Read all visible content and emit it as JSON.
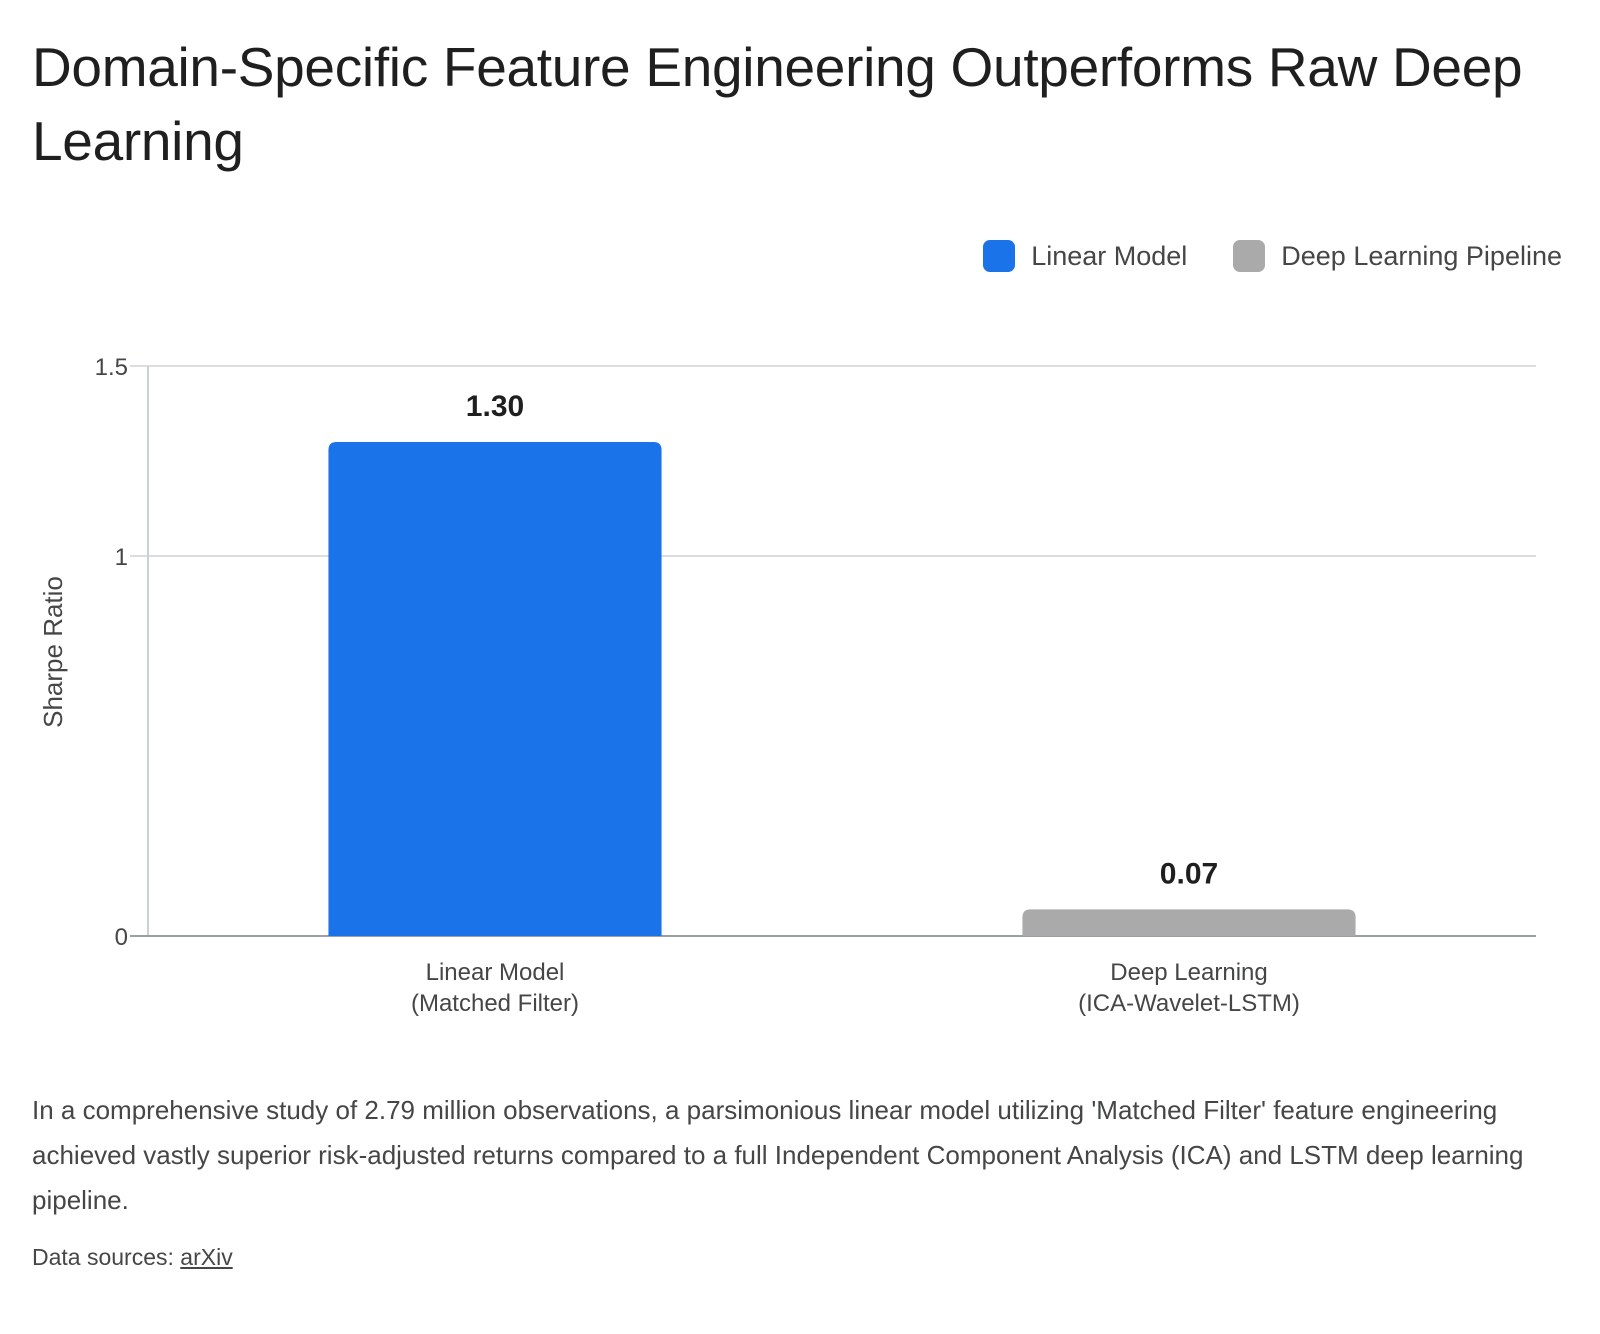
{
  "title": "Domain-Specific Feature Engineering Outperforms Raw Deep Learning",
  "description": "In a comprehensive study of 2.79 million observations, a parsimonious linear model utilizing 'Matched Filter' feature engineering achieved vastly superior risk-adjusted returns compared to a full Independent Component Analysis (ICA) and LSTM deep learning pipeline.",
  "sources": {
    "label": "Data sources:",
    "link_text": "arXiv"
  },
  "chart_data": {
    "type": "bar",
    "title": "Domain-Specific Feature Engineering Outperforms Raw Deep Learning",
    "xlabel": "",
    "ylabel": "Sharpe Ratio",
    "ylim": [
      0,
      1.5
    ],
    "yticks": [
      0,
      1,
      1.5
    ],
    "ytick_labels": [
      "0",
      "1",
      "1.5"
    ],
    "grid": true,
    "legend_position": "top-right",
    "categories": [
      [
        "Linear Model",
        "(Matched Filter)"
      ],
      [
        "Deep Learning",
        "(ICA-Wavelet-LSTM)"
      ]
    ],
    "series": [
      {
        "name": "Linear Model",
        "color": "#1a73e8"
      },
      {
        "name": "Deep Learning Pipeline",
        "color": "#aaaaaa"
      }
    ],
    "values": [
      1.3,
      0.07
    ],
    "data_labels": [
      "1.30",
      "0.07"
    ],
    "bar_colors": [
      "#1a73e8",
      "#aaaaaa"
    ]
  }
}
